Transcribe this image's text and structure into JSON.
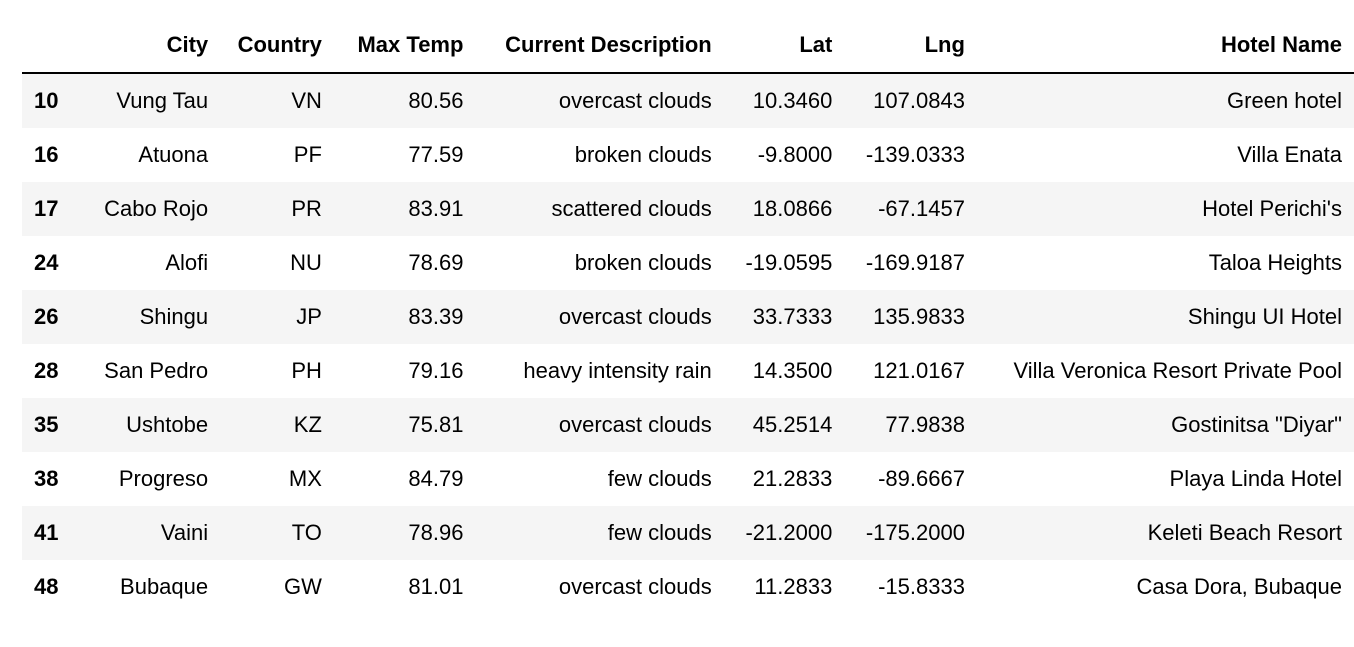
{
  "table": {
    "columns": [
      "",
      "City",
      "Country",
      "Max Temp",
      "Current Description",
      "Lat",
      "Lng",
      "Hotel Name"
    ],
    "rows": [
      {
        "index": "10",
        "city": "Vung Tau",
        "country": "VN",
        "max_temp": "80.56",
        "description": "overcast clouds",
        "lat": "10.3460",
        "lng": "107.0843",
        "hotel": "Green hotel"
      },
      {
        "index": "16",
        "city": "Atuona",
        "country": "PF",
        "max_temp": "77.59",
        "description": "broken clouds",
        "lat": "-9.8000",
        "lng": "-139.0333",
        "hotel": "Villa Enata"
      },
      {
        "index": "17",
        "city": "Cabo Rojo",
        "country": "PR",
        "max_temp": "83.91",
        "description": "scattered clouds",
        "lat": "18.0866",
        "lng": "-67.1457",
        "hotel": "Hotel Perichi's"
      },
      {
        "index": "24",
        "city": "Alofi",
        "country": "NU",
        "max_temp": "78.69",
        "description": "broken clouds",
        "lat": "-19.0595",
        "lng": "-169.9187",
        "hotel": "Taloa Heights"
      },
      {
        "index": "26",
        "city": "Shingu",
        "country": "JP",
        "max_temp": "83.39",
        "description": "overcast clouds",
        "lat": "33.7333",
        "lng": "135.9833",
        "hotel": "Shingu UI Hotel"
      },
      {
        "index": "28",
        "city": "San Pedro",
        "country": "PH",
        "max_temp": "79.16",
        "description": "heavy intensity rain",
        "lat": "14.3500",
        "lng": "121.0167",
        "hotel": "Villa Veronica Resort Private Pool"
      },
      {
        "index": "35",
        "city": "Ushtobe",
        "country": "KZ",
        "max_temp": "75.81",
        "description": "overcast clouds",
        "lat": "45.2514",
        "lng": "77.9838",
        "hotel": "Gostinitsa \"Diyar\""
      },
      {
        "index": "38",
        "city": "Progreso",
        "country": "MX",
        "max_temp": "84.79",
        "description": "few clouds",
        "lat": "21.2833",
        "lng": "-89.6667",
        "hotel": "Playa Linda Hotel"
      },
      {
        "index": "41",
        "city": "Vaini",
        "country": "TO",
        "max_temp": "78.96",
        "description": "few clouds",
        "lat": "-21.2000",
        "lng": "-175.2000",
        "hotel": "Keleti Beach Resort"
      },
      {
        "index": "48",
        "city": "Bubaque",
        "country": "GW",
        "max_temp": "81.01",
        "description": "overcast clouds",
        "lat": "11.2833",
        "lng": "-15.8333",
        "hotel": "Casa Dora, Bubaque"
      }
    ]
  }
}
